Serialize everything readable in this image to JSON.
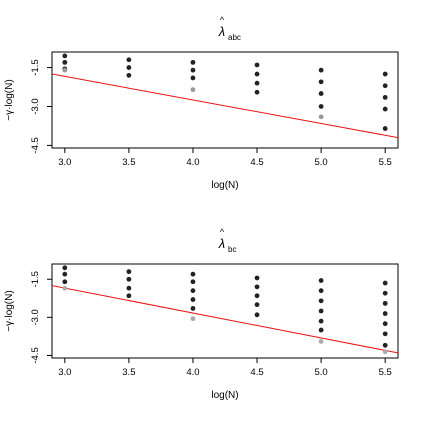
{
  "chart_data": [
    {
      "type": "scatter",
      "title": {
        "symbol": "λ",
        "hat": "^",
        "subscript": "abc"
      },
      "xlabel": "log(N)",
      "ylabel": "−γ·log(N)",
      "xlim": [
        2.9,
        5.6
      ],
      "ylim": [
        -4.6,
        -0.9
      ],
      "xticks": [
        3.0,
        3.5,
        4.0,
        4.5,
        5.0,
        5.5
      ],
      "yticks": [
        -1.5,
        -3.0,
        -4.5
      ],
      "xtick_labels": [
        "3.0",
        "3.5",
        "4.0",
        "4.5",
        "5.0",
        "5.5"
      ],
      "ytick_labels": [
        "-1.5",
        "-3.0",
        "-4.5"
      ],
      "series": [
        {
          "color": "#222222",
          "x": [
            3.0,
            3.0,
            3.0,
            3.5,
            3.5,
            3.5,
            4.0,
            4.0,
            4.0,
            4.5,
            4.5,
            4.5,
            4.5,
            5.0,
            5.0,
            5.0,
            5.0,
            5.5,
            5.5,
            5.5,
            5.5,
            5.5
          ],
          "y": [
            -1.05,
            -1.3,
            -1.55,
            -1.2,
            -1.5,
            -1.8,
            -1.3,
            -1.6,
            -1.9,
            -1.4,
            -1.75,
            -2.1,
            -2.45,
            -1.6,
            -2.05,
            -2.5,
            -3.0,
            -1.75,
            -2.2,
            -2.65,
            -3.1,
            -3.85
          ]
        },
        {
          "color": "#999999",
          "x": [
            3.0,
            4.0,
            5.0
          ],
          "y": [
            -1.6,
            -2.35,
            -3.4
          ]
        }
      ],
      "fit_line": {
        "color": "#ee1111",
        "x": [
          2.9,
          5.6
        ],
        "y": [
          -1.75,
          -4.2
        ]
      }
    },
    {
      "type": "scatter",
      "title": {
        "symbol": "λ",
        "hat": "^",
        "subscript": "bc"
      },
      "xlabel": "log(N)",
      "ylabel": "−γ·log(N)",
      "xlim": [
        2.9,
        5.6
      ],
      "ylim": [
        -4.6,
        -0.9
      ],
      "xticks": [
        3.0,
        3.5,
        4.0,
        4.5,
        5.0,
        5.5
      ],
      "yticks": [
        -1.5,
        -3.0,
        -4.5
      ],
      "xtick_labels": [
        "3.0",
        "3.5",
        "4.0",
        "4.5",
        "5.0",
        "5.5"
      ],
      "ytick_labels": [
        "-1.5",
        "-3.0",
        "-4.5"
      ],
      "series": [
        {
          "color": "#222222",
          "x": [
            3.0,
            3.0,
            3.0,
            3.5,
            3.5,
            3.5,
            3.5,
            4.0,
            4.0,
            4.0,
            4.0,
            4.0,
            4.5,
            4.5,
            4.5,
            4.5,
            4.5,
            5.0,
            5.0,
            5.0,
            5.0,
            5.0,
            5.0,
            5.5,
            5.5,
            5.5,
            5.5,
            5.5,
            5.5,
            5.5
          ],
          "y": [
            -1.05,
            -1.3,
            -1.6,
            -1.2,
            -1.5,
            -1.85,
            -2.15,
            -1.3,
            -1.6,
            -1.95,
            -2.3,
            -2.65,
            -1.45,
            -1.8,
            -2.15,
            -2.5,
            -2.9,
            -1.55,
            -1.95,
            -2.35,
            -2.75,
            -3.15,
            -3.5,
            -1.65,
            -2.05,
            -2.45,
            -2.85,
            -3.25,
            -3.65,
            -4.1
          ]
        },
        {
          "color": "#aaaaaa",
          "x": [
            3.0,
            4.0,
            5.0,
            5.5
          ],
          "y": [
            -1.85,
            -3.05,
            -3.95,
            -4.35
          ]
        }
      ],
      "fit_line": {
        "color": "#ee1111",
        "x": [
          2.9,
          5.6
        ],
        "y": [
          -1.75,
          -4.4
        ]
      }
    }
  ]
}
